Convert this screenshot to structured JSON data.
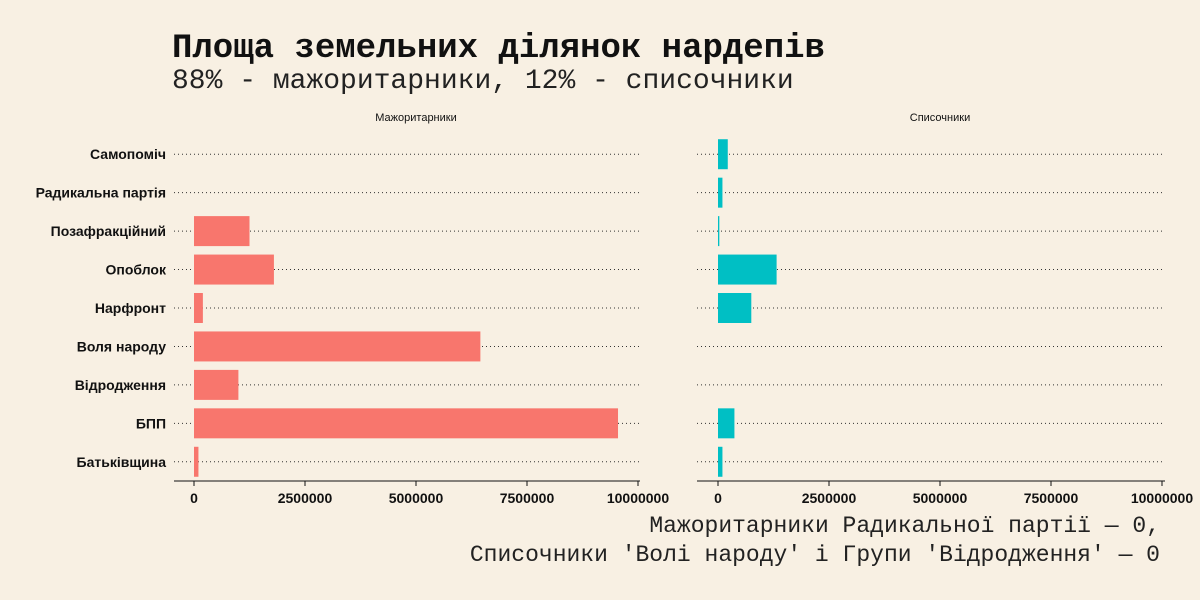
{
  "title": "Площа земельних ділянок нардепів",
  "subtitle": "88% - мажоритарники, 12% - списочники",
  "caption": {
    "line1": "Мажоритарники Радикальної партії — 0,",
    "line2": "Списочники 'Волі народу' і Групи 'Відродження' — 0"
  },
  "colors": {
    "background": "#f8f0e3",
    "majoritarian": "#f8766d",
    "list": "#00bfc4"
  },
  "chart_data": {
    "type": "bar",
    "orientation": "horizontal",
    "categories": [
      "Батьківщина",
      "БПП",
      "Відродження",
      "Воля народу",
      "Нарфронт",
      "Опоблок",
      "Позафракційний",
      "Радикальна партія",
      "Самопоміч"
    ],
    "xlim": [
      0,
      10000000
    ],
    "xticks": [
      0,
      2500000,
      5000000,
      7500000,
      10000000
    ],
    "xtick_labels": [
      "0",
      "2500000",
      "5000000",
      "7500000",
      "10000000"
    ],
    "grid": "dotted horizontal",
    "panels": [
      {
        "name": "Мажоритарники",
        "color": "#f8766d",
        "values": [
          100000,
          9550000,
          1000000,
          6450000,
          200000,
          1800000,
          1250000,
          0,
          0
        ]
      },
      {
        "name": "Списочники",
        "color": "#00bfc4",
        "values": [
          100000,
          370000,
          0,
          0,
          750000,
          1320000,
          30000,
          100000,
          220000
        ]
      }
    ]
  }
}
